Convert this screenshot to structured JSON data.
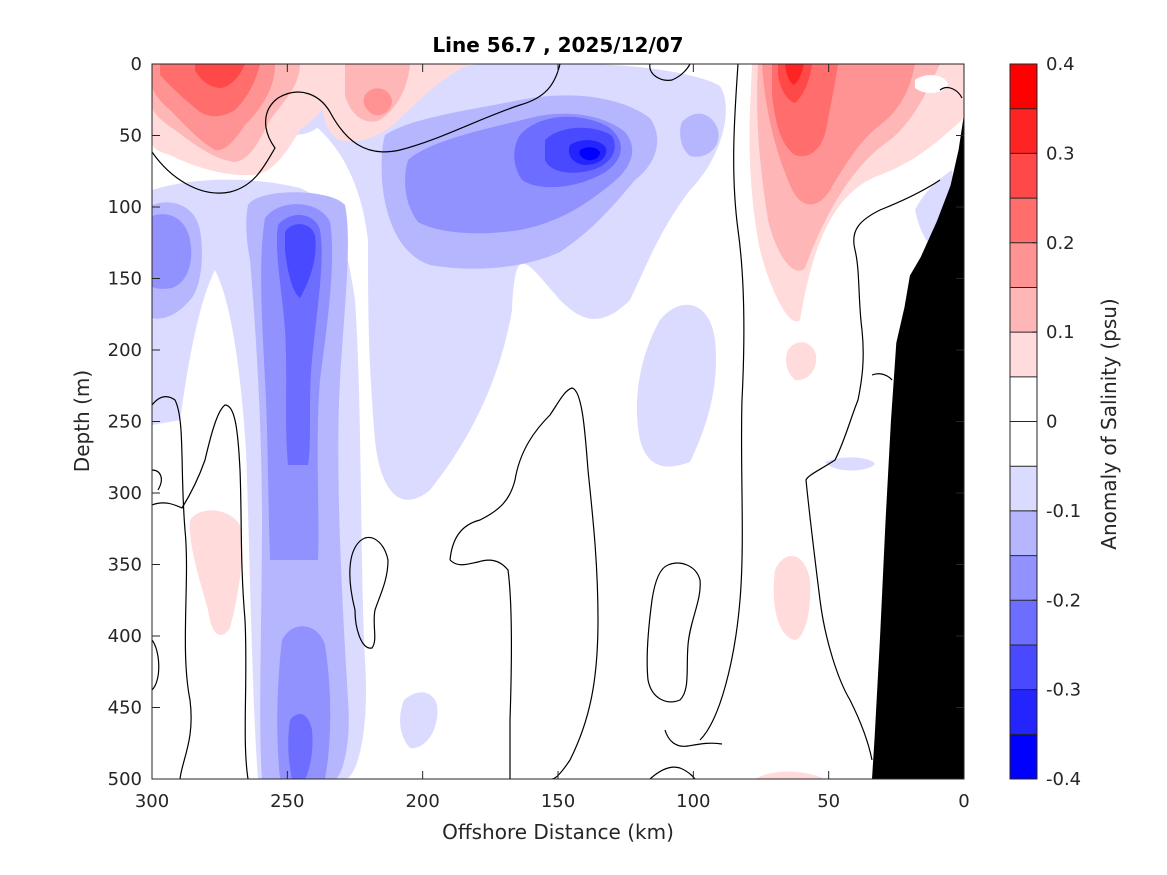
{
  "chart_data": {
    "type": "heatmap",
    "title": "Line 56.7 , 2025/12/07",
    "xlabel": "Offshore Distance (km)",
    "ylabel": "Depth (m)",
    "xlim": [
      300,
      0
    ],
    "ylim": [
      0,
      500
    ],
    "xticks": [
      300,
      250,
      200,
      150,
      100,
      50,
      0
    ],
    "yticks": [
      0,
      50,
      100,
      150,
      200,
      250,
      300,
      350,
      400,
      450,
      500
    ],
    "colorbar": {
      "label": "Anomaly of Salinity (psu)",
      "range": [
        -0.4,
        0.4
      ],
      "ticks": [
        "0.4",
        "0.3",
        "0.2",
        "0.1",
        "0",
        "-0.1",
        "-0.2",
        "-0.3",
        "-0.4"
      ],
      "levels": [
        {
          "lo": 0.35,
          "hi": 0.4,
          "color": "#ff0000"
        },
        {
          "lo": 0.3,
          "hi": 0.35,
          "color": "#ff2424"
        },
        {
          "lo": 0.25,
          "hi": 0.3,
          "color": "#ff4949"
        },
        {
          "lo": 0.2,
          "hi": 0.25,
          "color": "#ff6d6d"
        },
        {
          "lo": 0.15,
          "hi": 0.2,
          "color": "#ff9292"
        },
        {
          "lo": 0.1,
          "hi": 0.15,
          "color": "#ffb6b6"
        },
        {
          "lo": 0.05,
          "hi": 0.1,
          "color": "#ffdbdb"
        },
        {
          "lo": 0.0,
          "hi": 0.05,
          "color": "#ffffff"
        },
        {
          "lo": -0.05,
          "hi": 0.0,
          "color": "#ffffff"
        },
        {
          "lo": -0.1,
          "hi": -0.05,
          "color": "#dbdbff"
        },
        {
          "lo": -0.15,
          "hi": -0.1,
          "color": "#b6b6ff"
        },
        {
          "lo": -0.2,
          "hi": -0.15,
          "color": "#9292ff"
        },
        {
          "lo": -0.25,
          "hi": -0.2,
          "color": "#6d6dff"
        },
        {
          "lo": -0.3,
          "hi": -0.25,
          "color": "#4949ff"
        },
        {
          "lo": -0.35,
          "hi": -0.3,
          "color": "#2424ff"
        },
        {
          "lo": -0.4,
          "hi": -0.35,
          "color": "#0000ff"
        }
      ]
    },
    "features": [
      {
        "name": "high-salinity-anomaly-surface-west",
        "center_km": 275,
        "center_depth_m": 20,
        "peak": 0.2
      },
      {
        "name": "high-salinity-anomaly-surface-220",
        "center_km": 220,
        "center_depth_m": 20,
        "peak": 0.15
      },
      {
        "name": "high-salinity-anomaly-surface-east",
        "center_km": 62,
        "center_depth_m": 30,
        "peak": 0.25
      },
      {
        "name": "low-salinity-core-subsurface",
        "center_km": 140,
        "center_depth_m": 65,
        "peak": -0.3
      },
      {
        "name": "low-salinity-column-250km",
        "center_km": 248,
        "center_depth_m": 200,
        "peak": -0.25
      },
      {
        "name": "low-salinity-west-edge",
        "center_km": 292,
        "center_depth_m": 130,
        "peak": -0.15
      }
    ],
    "bathymetry": {
      "color": "#000000",
      "profile": [
        {
          "x_km": 0,
          "depth_m": 35
        },
        {
          "x_km": 2,
          "depth_m": 60
        },
        {
          "x_km": 5,
          "depth_m": 85
        },
        {
          "x_km": 10,
          "depth_m": 110
        },
        {
          "x_km": 16,
          "depth_m": 135
        },
        {
          "x_km": 20,
          "depth_m": 148
        },
        {
          "x_km": 22,
          "depth_m": 170
        },
        {
          "x_km": 25,
          "depth_m": 195
        },
        {
          "x_km": 27,
          "depth_m": 250
        },
        {
          "x_km": 29,
          "depth_m": 320
        },
        {
          "x_km": 31,
          "depth_m": 400
        },
        {
          "x_km": 33,
          "depth_m": 470
        },
        {
          "x_km": 34,
          "depth_m": 500
        }
      ]
    }
  }
}
